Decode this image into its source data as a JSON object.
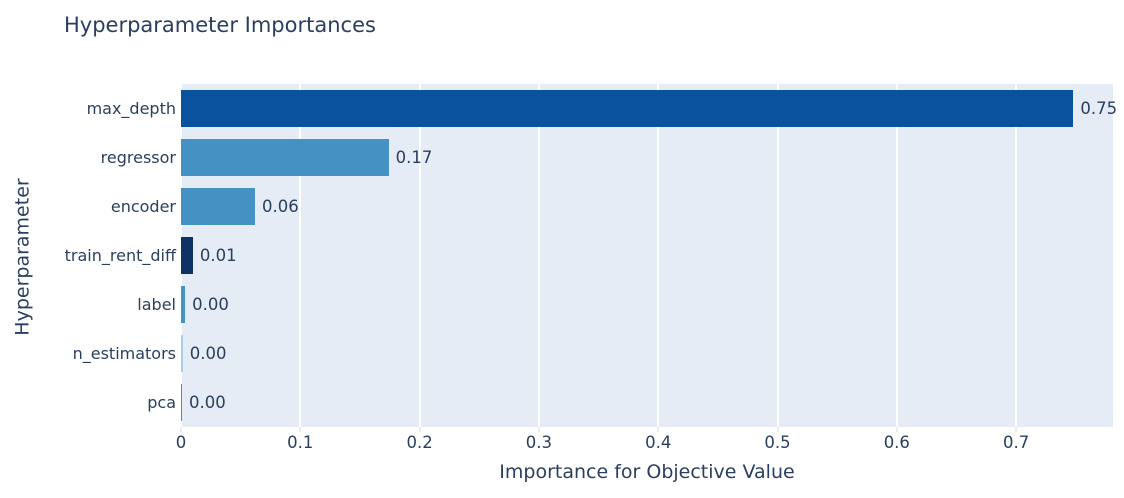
{
  "chart_data": {
    "type": "bar",
    "orientation": "horizontal",
    "title": "Hyperparameter Importances",
    "xlabel": "Importance for Objective Value",
    "ylabel": "Hyperparameter",
    "categories": [
      "max_depth",
      "regressor",
      "encoder",
      "train_rent_diff",
      "label",
      "n_estimators",
      "pca"
    ],
    "values": [
      0.75,
      0.17,
      0.06,
      0.01,
      0.0,
      0.0,
      0.0
    ],
    "value_labels": [
      "0.75",
      "0.17",
      "0.06",
      "0.01",
      "0.00",
      "0.00",
      "0.00"
    ],
    "bar_fractions": [
      0.748,
      0.174,
      0.062,
      0.01,
      0.0035,
      0.0015,
      0.0008
    ],
    "bar_colors": [
      "#0a519e",
      "#4492c4",
      "#4492c4",
      "#0e3166",
      "#4492c4",
      "#a8cbe8",
      "#4492c4"
    ],
    "x_ticks": [
      "0",
      "0.1",
      "0.2",
      "0.3",
      "0.4",
      "0.5",
      "0.6",
      "0.7"
    ],
    "x_tick_values": [
      0,
      0.1,
      0.2,
      0.3,
      0.4,
      0.5,
      0.6,
      0.7
    ],
    "xlim": [
      0,
      0.7812
    ],
    "grid": true,
    "legend": "none",
    "colors": {
      "plot_background": "#e5ecf6",
      "paper_background": "#ffffff",
      "gridline": "#ffffff",
      "text": "#2a3f5f"
    }
  }
}
